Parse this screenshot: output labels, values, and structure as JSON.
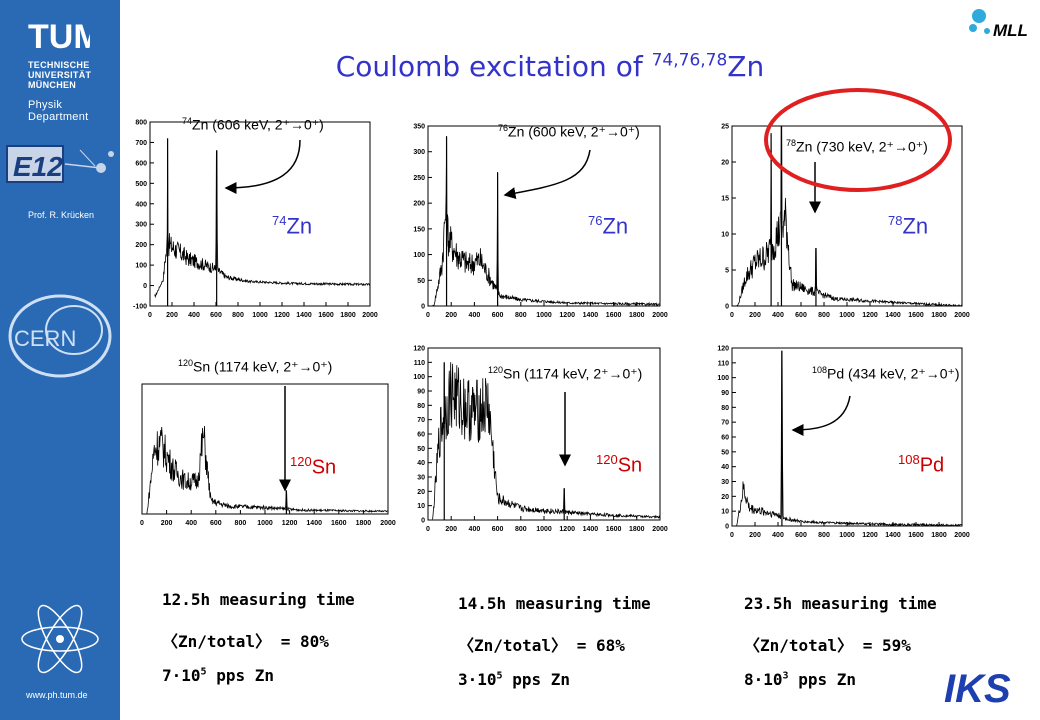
{
  "sidebar": {
    "logo_text": "TUM",
    "university_lines": [
      "TECHNISCHE",
      "UNIVERSITÄT",
      "MÜNCHEN"
    ],
    "department_lines": [
      "Physik",
      "Department"
    ],
    "group_logo_text": "E12",
    "professor": "Prof. R. Krücken",
    "cern_logo_text": "CERN",
    "url": "www.ph.tum.de"
  },
  "mll_logo_text": "MLL",
  "iks_logo_text": "IKS",
  "title": {
    "prefix": "Coulomb excitation of ",
    "superscript": "74,76,78",
    "element": "Zn"
  },
  "colors": {
    "title": "#3333cc",
    "highlight_ellipse": "#e02020",
    "red_label": "#cc0000",
    "sidebar": "#2a6ab5"
  },
  "chart_data": [
    {
      "type": "line",
      "isotope": "74Zn",
      "label": {
        "mass": "74",
        "element": "Zn"
      },
      "annotation": {
        "mass": "74",
        "text": "Zn (606 keV, 2⁺→0⁺)"
      },
      "xlim": [
        0,
        2000
      ],
      "ylim": [
        -100,
        800
      ],
      "xticks": [
        0,
        200,
        400,
        600,
        800,
        1000,
        1200,
        1400,
        1600,
        1800,
        2000
      ],
      "yticks": [
        -100,
        0,
        100,
        200,
        300,
        400,
        500,
        600,
        700,
        800
      ],
      "peaks": [
        {
          "x": 160,
          "y": 720
        },
        {
          "x": 606,
          "y": 660
        }
      ],
      "background": [
        [
          50,
          -50
        ],
        [
          120,
          30
        ],
        [
          140,
          140
        ],
        [
          170,
          200
        ],
        [
          250,
          170
        ],
        [
          350,
          130
        ],
        [
          450,
          110
        ],
        [
          550,
          90
        ],
        [
          600,
          80
        ],
        [
          700,
          40
        ],
        [
          900,
          20
        ],
        [
          1300,
          10
        ],
        [
          2000,
          5
        ]
      ]
    },
    {
      "type": "line",
      "isotope": "76Zn",
      "label": {
        "mass": "76",
        "element": "Zn"
      },
      "annotation": {
        "mass": "76",
        "text": "Zn (600 keV, 2⁺→0⁺)"
      },
      "xlim": [
        0,
        2000
      ],
      "ylim": [
        0,
        350
      ],
      "xticks": [
        0,
        200,
        400,
        600,
        800,
        1000,
        1200,
        1400,
        1600,
        1800,
        2000
      ],
      "yticks": [
        0,
        50,
        100,
        150,
        200,
        250,
        300,
        350
      ],
      "peaks": [
        {
          "x": 160,
          "y": 330
        },
        {
          "x": 600,
          "y": 260
        }
      ],
      "background": [
        [
          50,
          0
        ],
        [
          120,
          80
        ],
        [
          150,
          180
        ],
        [
          180,
          130
        ],
        [
          250,
          100
        ],
        [
          350,
          80
        ],
        [
          450,
          90
        ],
        [
          520,
          60
        ],
        [
          620,
          20
        ],
        [
          800,
          12
        ],
        [
          1200,
          6
        ],
        [
          2000,
          3
        ]
      ]
    },
    {
      "type": "line",
      "isotope": "78Zn",
      "label": {
        "mass": "78",
        "element": "Zn"
      },
      "annotation": {
        "mass": "78",
        "text": "Zn (730 keV, 2⁺→0⁺)"
      },
      "xlim": [
        0,
        2000
      ],
      "ylim": [
        0,
        25
      ],
      "xticks": [
        0,
        200,
        400,
        600,
        800,
        1000,
        1200,
        1400,
        1600,
        1800,
        2000
      ],
      "yticks": [
        0,
        5,
        10,
        15,
        20,
        25
      ],
      "peaks": [
        {
          "x": 340,
          "y": 24
        },
        {
          "x": 430,
          "y": 25
        },
        {
          "x": 730,
          "y": 8
        }
      ],
      "background": [
        [
          50,
          0
        ],
        [
          120,
          4
        ],
        [
          200,
          6
        ],
        [
          300,
          7
        ],
        [
          400,
          10
        ],
        [
          470,
          12
        ],
        [
          520,
          3
        ],
        [
          700,
          2
        ],
        [
          900,
          1
        ],
        [
          1400,
          0.5
        ],
        [
          2000,
          0
        ]
      ]
    },
    {
      "type": "line",
      "isotope": "120Sn",
      "label": {
        "mass": "120",
        "element": "Sn"
      },
      "annotation": {
        "mass": "120",
        "text": "Sn (1174 keV, 2⁺→0⁺)"
      },
      "xlim": [
        0,
        2000
      ],
      "ylim": [
        0,
        100
      ],
      "xticks": [
        0,
        200,
        400,
        600,
        800,
        1000,
        1200,
        1400,
        1600,
        1800,
        2000
      ],
      "peaks": [
        {
          "x": 1174,
          "y": 18
        }
      ],
      "background": [
        [
          40,
          0
        ],
        [
          100,
          50
        ],
        [
          150,
          55
        ],
        [
          250,
          35
        ],
        [
          350,
          25
        ],
        [
          450,
          25
        ],
        [
          500,
          60
        ],
        [
          560,
          10
        ],
        [
          700,
          6
        ],
        [
          1000,
          5
        ],
        [
          1300,
          3
        ],
        [
          2000,
          2
        ]
      ]
    },
    {
      "type": "line",
      "isotope": "120Sn",
      "label": {
        "mass": "120",
        "element": "Sn"
      },
      "annotation": {
        "mass": "120",
        "text": "Sn (1174 keV, 2⁺→0⁺)"
      },
      "xlim": [
        0,
        2000
      ],
      "ylim": [
        0,
        120
      ],
      "xticks": [
        0,
        200,
        400,
        600,
        800,
        1000,
        1200,
        1400,
        1600,
        1800,
        2000
      ],
      "yticks": [
        0,
        10,
        20,
        30,
        40,
        50,
        60,
        70,
        80,
        90,
        100,
        110,
        120
      ],
      "peaks": [
        {
          "x": 140,
          "y": 110
        },
        {
          "x": 1174,
          "y": 22
        }
      ],
      "background": [
        [
          40,
          0
        ],
        [
          100,
          60
        ],
        [
          200,
          90
        ],
        [
          300,
          80
        ],
        [
          400,
          75
        ],
        [
          520,
          80
        ],
        [
          600,
          15
        ],
        [
          800,
          8
        ],
        [
          1100,
          6
        ],
        [
          1400,
          4
        ],
        [
          2000,
          2
        ]
      ]
    },
    {
      "type": "line",
      "isotope": "108Pd",
      "label": {
        "mass": "108",
        "element": "Pd"
      },
      "annotation": {
        "mass": "108",
        "text": "Pd (434 keV, 2⁺→0⁺)"
      },
      "xlim": [
        0,
        2000
      ],
      "ylim": [
        0,
        120
      ],
      "xticks": [
        0,
        200,
        400,
        600,
        800,
        1000,
        1200,
        1400,
        1600,
        1800,
        2000
      ],
      "yticks": [
        0,
        10,
        20,
        30,
        40,
        50,
        60,
        70,
        80,
        90,
        100,
        110,
        120
      ],
      "peaks": [
        {
          "x": 434,
          "y": 118
        }
      ],
      "background": [
        [
          40,
          0
        ],
        [
          100,
          25
        ],
        [
          150,
          12
        ],
        [
          250,
          10
        ],
        [
          380,
          8
        ],
        [
          460,
          5
        ],
        [
          600,
          3
        ],
        [
          900,
          2
        ],
        [
          1400,
          1
        ],
        [
          2000,
          0.5
        ]
      ]
    }
  ],
  "stats": [
    {
      "time": "12.5h measuring time",
      "ratio": "〈Zn/total〉 = 80%",
      "rate_mantissa": "7·10",
      "rate_exp": "5",
      "rate_unit": " pps Zn"
    },
    {
      "time": "14.5h measuring time",
      "ratio": "〈Zn/total〉 = 68%",
      "rate_mantissa": "3·10",
      "rate_exp": "5",
      "rate_unit": " pps Zn"
    },
    {
      "time": "23.5h measuring time",
      "ratio": "〈Zn/total〉 = 59%",
      "rate_mantissa": "8·10",
      "rate_exp": "3",
      "rate_unit": " pps Zn"
    }
  ]
}
